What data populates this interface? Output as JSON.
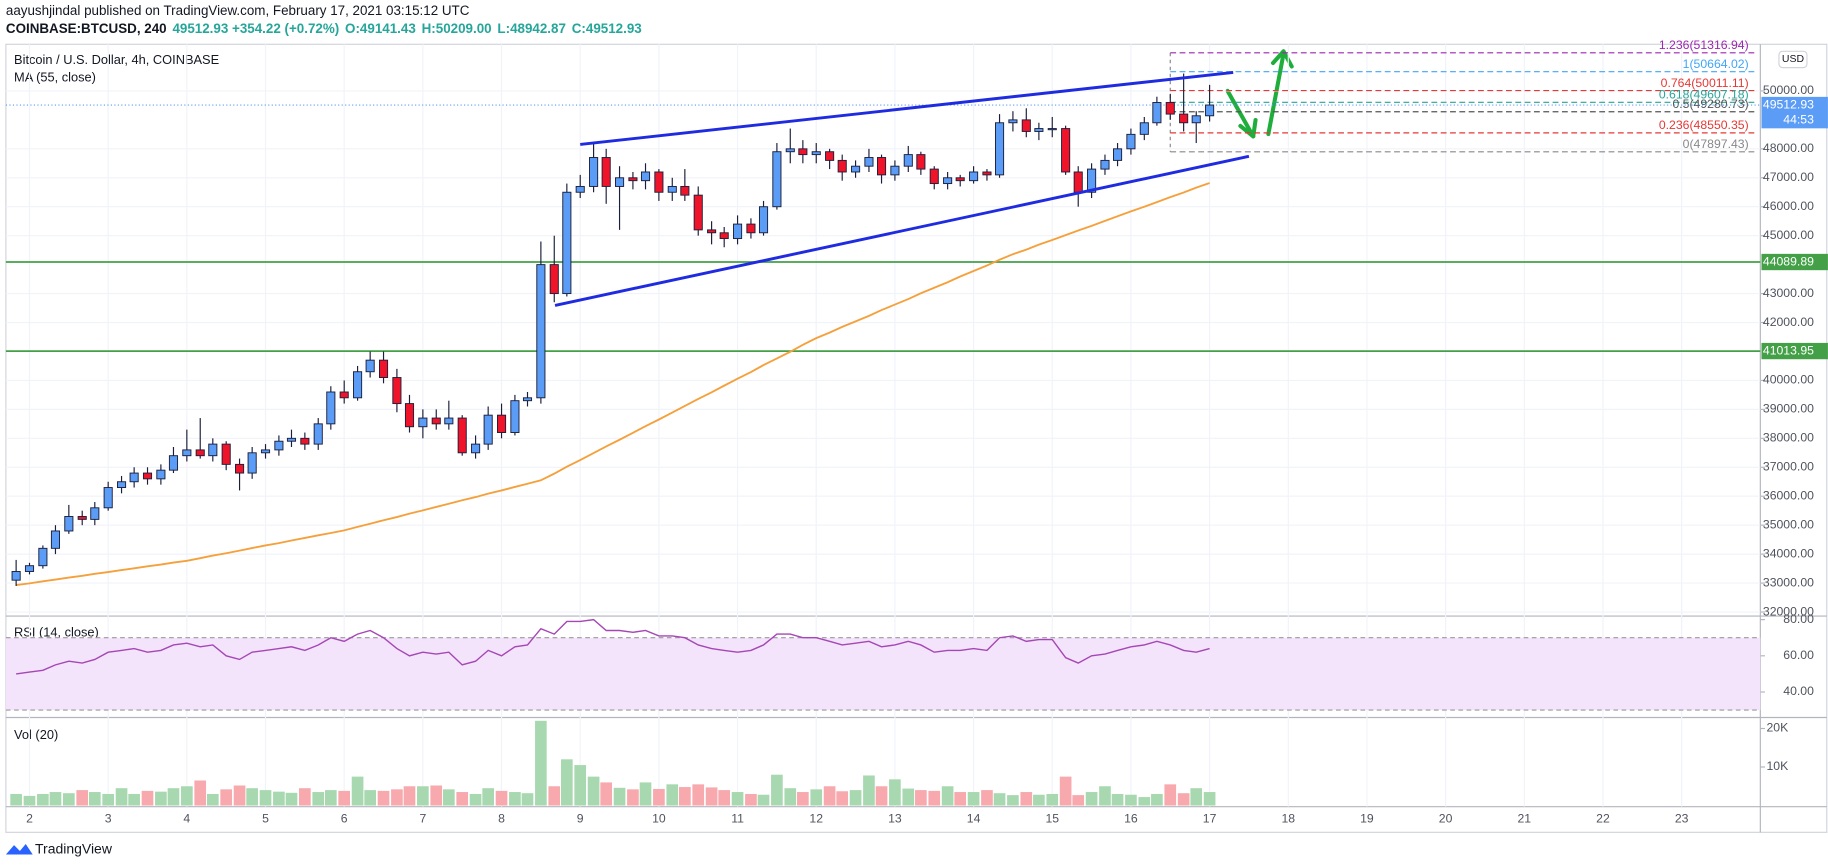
{
  "chart_data": {
    "type": "candlestick",
    "header": "aayushjindal published on TradingView.com, February 17, 2021 03:15:12 UTC",
    "quote": [
      {
        "text": "COINBASE:BTCUSD, 240",
        "color": "#131722"
      },
      {
        "text": "49512.93 +354.22 (+0.72%)",
        "color": "#26a69a"
      },
      {
        "text": "O:49141.43",
        "color": "#26a69a"
      },
      {
        "text": "H:50209.00",
        "color": "#26a69a"
      },
      {
        "text": "L:48942.87",
        "color": "#26a69a"
      },
      {
        "text": "C:49512.93",
        "color": "#26a69a"
      }
    ],
    "title": "Bitcoin / U.S. Dollar, 4h, COINBASE",
    "currency": "USD",
    "footer": "TradingView",
    "grid": true,
    "xlim": [
      1.7,
      24.0
    ],
    "xticks": [
      2,
      3,
      4,
      5,
      6,
      7,
      8,
      9,
      10,
      11,
      12,
      13,
      14,
      15,
      16,
      17,
      18,
      19,
      20,
      21,
      22,
      23
    ],
    "ylim": [
      31920,
      51530
    ],
    "yticks": [
      {
        "value": 32000,
        "label": "32000.00"
      },
      {
        "value": 33000,
        "label": "33000.00"
      },
      {
        "value": 34000,
        "label": "34000.00"
      },
      {
        "value": 35000,
        "label": "35000.00"
      },
      {
        "value": 36000,
        "label": "36000.00"
      },
      {
        "value": 37000,
        "label": "37000.00"
      },
      {
        "value": 38000,
        "label": "38000.00"
      },
      {
        "value": 39000,
        "label": "39000.00"
      },
      {
        "value": 40000,
        "label": "40000.00"
      },
      {
        "value": 42000,
        "label": "42000.00"
      },
      {
        "value": 43000,
        "label": "43000.00"
      },
      {
        "value": 45000,
        "label": "45000.00"
      },
      {
        "value": 46000,
        "label": "46000.00"
      },
      {
        "value": 47000,
        "label": "47000.00"
      },
      {
        "value": 48000,
        "label": "48000.00"
      },
      {
        "value": 50000,
        "label": "50000.00"
      }
    ],
    "up_color": "#5b9cf6",
    "down_color": "#f0142b",
    "times": [
      1.83,
      2,
      2.17,
      2.33,
      2.5,
      2.67,
      2.83,
      3,
      3.17,
      3.33,
      3.5,
      3.67,
      3.83,
      4,
      4.17,
      4.33,
      4.5,
      4.67,
      4.83,
      5,
      5.17,
      5.33,
      5.5,
      5.67,
      5.83,
      6,
      6.17,
      6.33,
      6.5,
      6.67,
      6.83,
      7,
      7.17,
      7.33,
      7.5,
      7.67,
      7.83,
      8,
      8.17,
      8.33,
      8.5,
      8.67,
      8.83,
      9,
      9.17,
      9.33,
      9.5,
      9.67,
      9.83,
      10,
      10.17,
      10.33,
      10.5,
      10.67,
      10.83,
      11,
      11.17,
      11.33,
      11.5,
      11.67,
      11.83,
      12,
      12.17,
      12.33,
      12.5,
      12.67,
      12.83,
      13,
      13.17,
      13.33,
      13.5,
      13.67,
      13.83,
      14,
      14.17,
      14.33,
      14.5,
      14.67,
      14.83,
      15,
      15.17,
      15.33,
      15.5,
      15.67,
      15.83,
      16,
      16.17,
      16.33,
      16.5,
      16.67,
      16.83,
      17
    ],
    "candles": [
      [
        33100,
        33800,
        32900,
        33400
      ],
      [
        33400,
        33700,
        33300,
        33600
      ],
      [
        33600,
        34300,
        33500,
        34200
      ],
      [
        34200,
        35000,
        34000,
        34800
      ],
      [
        34800,
        35700,
        34700,
        35300
      ],
      [
        35300,
        35500,
        35000,
        35200
      ],
      [
        35200,
        35800,
        35000,
        35600
      ],
      [
        35600,
        36500,
        35500,
        36300
      ],
      [
        36300,
        36700,
        36100,
        36500
      ],
      [
        36500,
        37000,
        36300,
        36800
      ],
      [
        36800,
        37000,
        36400,
        36600
      ],
      [
        36600,
        37100,
        36400,
        36900
      ],
      [
        36900,
        37700,
        36800,
        37400
      ],
      [
        37400,
        38300,
        37200,
        37600
      ],
      [
        37600,
        38700,
        37300,
        37400
      ],
      [
        37400,
        38000,
        37200,
        37800
      ],
      [
        37800,
        37900,
        36900,
        37100
      ],
      [
        37100,
        37300,
        36200,
        36800
      ],
      [
        36800,
        37700,
        36600,
        37500
      ],
      [
        37500,
        37800,
        37300,
        37600
      ],
      [
        37600,
        38100,
        37400,
        37900
      ],
      [
        37900,
        38300,
        37700,
        38000
      ],
      [
        38000,
        38200,
        37600,
        37800
      ],
      [
        37800,
        38700,
        37600,
        38500
      ],
      [
        38500,
        39800,
        38300,
        39600
      ],
      [
        39600,
        40000,
        39200,
        39400
      ],
      [
        39400,
        40500,
        39300,
        40300
      ],
      [
        40300,
        41000,
        40100,
        40700
      ],
      [
        40700,
        41000,
        39900,
        40100
      ],
      [
        40100,
        40400,
        38900,
        39200
      ],
      [
        39200,
        39500,
        38200,
        38400
      ],
      [
        38400,
        39000,
        38000,
        38700
      ],
      [
        38700,
        39000,
        38300,
        38500
      ],
      [
        38500,
        39300,
        38300,
        38700
      ],
      [
        38700,
        38800,
        37400,
        37500
      ],
      [
        37500,
        38100,
        37300,
        37800
      ],
      [
        37800,
        39100,
        37600,
        38800
      ],
      [
        38800,
        39200,
        38000,
        38200
      ],
      [
        38200,
        39500,
        38100,
        39300
      ],
      [
        39300,
        39600,
        39100,
        39400
      ],
      [
        39400,
        44800,
        39200,
        44000
      ],
      [
        44000,
        45000,
        42700,
        43000
      ],
      [
        43000,
        46800,
        42900,
        46500
      ],
      [
        46500,
        47100,
        46300,
        46700
      ],
      [
        46700,
        48200,
        46500,
        47700
      ],
      [
        47700,
        48000,
        46100,
        46700
      ],
      [
        46700,
        47400,
        45200,
        47000
      ],
      [
        47000,
        47200,
        46600,
        46900
      ],
      [
        46900,
        47500,
        46600,
        47200
      ],
      [
        47200,
        47300,
        46200,
        46500
      ],
      [
        46500,
        47000,
        46200,
        46700
      ],
      [
        46700,
        47300,
        46200,
        46400
      ],
      [
        46400,
        46700,
        45000,
        45200
      ],
      [
        45200,
        45500,
        44700,
        45100
      ],
      [
        45100,
        45300,
        44600,
        44900
      ],
      [
        44900,
        45700,
        44700,
        45400
      ],
      [
        45400,
        45600,
        44900,
        45100
      ],
      [
        45100,
        46200,
        45000,
        46000
      ],
      [
        46000,
        48200,
        45900,
        47900
      ],
      [
        47900,
        48700,
        47500,
        48000
      ],
      [
        48000,
        48300,
        47500,
        47800
      ],
      [
        47800,
        48200,
        47500,
        47900
      ],
      [
        47900,
        48000,
        47300,
        47600
      ],
      [
        47600,
        47800,
        46900,
        47200
      ],
      [
        47200,
        47600,
        47000,
        47400
      ],
      [
        47400,
        48000,
        47200,
        47700
      ],
      [
        47700,
        47800,
        46800,
        47100
      ],
      [
        47100,
        47600,
        46900,
        47400
      ],
      [
        47400,
        48100,
        47200,
        47800
      ],
      [
        47800,
        47900,
        47100,
        47300
      ],
      [
        47300,
        47400,
        46600,
        46800
      ],
      [
        46800,
        47200,
        46600,
        47000
      ],
      [
        47000,
        47100,
        46700,
        46900
      ],
      [
        46900,
        47400,
        46800,
        47200
      ],
      [
        47200,
        47300,
        46900,
        47100
      ],
      [
        47100,
        49200,
        47000,
        48900
      ],
      [
        48900,
        49300,
        48600,
        49000
      ],
      [
        49000,
        49400,
        48400,
        48600
      ],
      [
        48600,
        48900,
        48300,
        48700
      ],
      [
        48700,
        49100,
        48400,
        48700
      ],
      [
        48700,
        48800,
        47100,
        47200
      ],
      [
        47200,
        47400,
        46000,
        46500
      ],
      [
        46500,
        47500,
        46300,
        47300
      ],
      [
        47300,
        47800,
        47100,
        47600
      ],
      [
        47600,
        48200,
        47400,
        48000
      ],
      [
        48000,
        48700,
        47800,
        48500
      ],
      [
        48500,
        49100,
        48300,
        48900
      ],
      [
        48900,
        49800,
        48800,
        49600
      ],
      [
        49600,
        49900,
        49000,
        49200
      ],
      [
        49200,
        50600,
        48600,
        48900
      ],
      [
        48900,
        49300,
        48200,
        49141.43
      ],
      [
        49141.43,
        50209,
        48942.87,
        49512.93
      ]
    ],
    "ma": {
      "name": "MA (55, close)",
      "color": "#f5a03a",
      "values": [
        32930,
        32990,
        33060,
        33120,
        33190,
        33250,
        33320,
        33380,
        33450,
        33510,
        33580,
        33640,
        33710,
        33770,
        33860,
        33950,
        34030,
        34120,
        34210,
        34300,
        34380,
        34470,
        34560,
        34650,
        34730,
        34820,
        34940,
        35050,
        35170,
        35280,
        35400,
        35510,
        35630,
        35740,
        35860,
        35970,
        36090,
        36200,
        36320,
        36430,
        36550,
        36780,
        37020,
        37250,
        37490,
        37720,
        37950,
        38190,
        38420,
        38650,
        38890,
        39120,
        39360,
        39590,
        39820,
        40060,
        40290,
        40530,
        40760,
        40990,
        41230,
        41460,
        41650,
        41850,
        42040,
        42230,
        42430,
        42620,
        42810,
        43010,
        43200,
        43390,
        43590,
        43780,
        43970,
        44170,
        44360,
        44520,
        44690,
        44850,
        45020,
        45180,
        45340,
        45510,
        45670,
        45840,
        46000,
        46160,
        46330,
        46490,
        46660,
        46820
      ]
    },
    "last_price": {
      "value": 49512.93,
      "countdown": "44:53",
      "color": "#5b9cf6"
    },
    "levels": {
      "color": "#43a047",
      "values": [
        44089.89,
        41013.95
      ]
    },
    "fib": [
      {
        "value": 51316.94,
        "label": "1.236(51316.94)",
        "color": "#9c27b0"
      },
      {
        "value": 50664.02,
        "label": "1(50664.02)",
        "color": "#42a5f5"
      },
      {
        "value": 50011.11,
        "label": "0.764(50011.11)",
        "color": "#e53935"
      },
      {
        "value": 49607.18,
        "label": "0.618(49607.18)",
        "color": "#26a69a"
      },
      {
        "value": 49280.73,
        "label": "0.5(49280.73)",
        "color": "#555555"
      },
      {
        "value": 48550.35,
        "label": "0.236(48550.35)",
        "color": "#e53935"
      },
      {
        "value": 47897.43,
        "label": "0(47897.43)",
        "color": "#888888"
      }
    ],
    "fib_start": 16.5,
    "trendlines": {
      "color": "#1f2be0",
      "lines": [
        [
          9.0,
          48150,
          17.3,
          50640
        ],
        [
          8.68,
          42590,
          17.5,
          47740
        ]
      ]
    },
    "rsi": {
      "name": "RSI (14, close)",
      "color": "#a547b5",
      "band": [
        30,
        70
      ],
      "ylim": [
        27.5,
        81
      ],
      "yticks": [
        {
          "value": 80,
          "label": "80.00"
        },
        {
          "value": 60,
          "label": "60.00"
        },
        {
          "value": 40,
          "label": "40.00"
        }
      ],
      "values": [
        50,
        51,
        52,
        55,
        57,
        56,
        58,
        62,
        63,
        64,
        62,
        63,
        66,
        67,
        65,
        66,
        60,
        58,
        62,
        63,
        64,
        65,
        63,
        66,
        70,
        68,
        72,
        74,
        70,
        64,
        60,
        62,
        61,
        62,
        55,
        57,
        63,
        60,
        65,
        66,
        75,
        72,
        79,
        79,
        80,
        74,
        74,
        73,
        74,
        71,
        71,
        70,
        66,
        64,
        63,
        62,
        63,
        66,
        72,
        72,
        70,
        70,
        68,
        66,
        67,
        68,
        65,
        66,
        68,
        66,
        62,
        63,
        63,
        64,
        63,
        70,
        71,
        68,
        69,
        69,
        59,
        56,
        60,
        61,
        63,
        65,
        66,
        68,
        66,
        63,
        62,
        64
      ]
    },
    "volume": {
      "name": "Vol (20)",
      "up_color": "#a8d8b0",
      "down_color": "#f7a9ad",
      "ylim": [
        0,
        22400
      ],
      "yticks": [
        {
          "value": 20000,
          "label": "20K"
        },
        {
          "value": 10000,
          "label": "10K"
        }
      ],
      "values": [
        3000,
        2500,
        3000,
        3500,
        3200,
        4000,
        3500,
        3000,
        4500,
        3000,
        3800,
        3600,
        4500,
        5000,
        6500,
        3000,
        4200,
        5200,
        4500,
        4000,
        3600,
        3300,
        4500,
        3500,
        4000,
        3800,
        7500,
        4000,
        3800,
        4200,
        5000,
        5000,
        5200,
        4200,
        3500,
        3000,
        4500,
        3800,
        3500,
        3200,
        22000,
        5000,
        12000,
        10500,
        7500,
        6000,
        4600,
        4200,
        6000,
        4300,
        5500,
        4800,
        5500,
        4700,
        4000,
        3500,
        3000,
        2800,
        8000,
        4500,
        3500,
        4200,
        5000,
        3700,
        4000,
        7800,
        5000,
        6800,
        4400,
        4000,
        3800,
        5000,
        3500,
        3500,
        4000,
        3200,
        2700,
        3500,
        2800,
        3000,
        7500,
        2700,
        3500,
        5000,
        3000,
        2800,
        2200,
        3000,
        5500,
        3200,
        4500,
        3500
      ]
    }
  }
}
